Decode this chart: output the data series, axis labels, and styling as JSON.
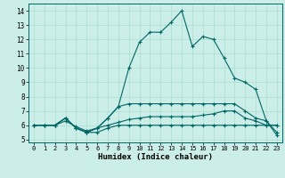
{
  "xlabel": "Humidex (Indice chaleur)",
  "xlim": [
    -0.5,
    23.5
  ],
  "ylim": [
    4.8,
    14.5
  ],
  "xticks": [
    0,
    1,
    2,
    3,
    4,
    5,
    6,
    7,
    8,
    9,
    10,
    11,
    12,
    13,
    14,
    15,
    16,
    17,
    18,
    19,
    20,
    21,
    22,
    23
  ],
  "yticks": [
    5,
    6,
    7,
    8,
    9,
    10,
    11,
    12,
    13,
    14
  ],
  "bg_color": "#cceee8",
  "line_color": "#006666",
  "grid_color": "#aaddcc",
  "curves": [
    [
      6.0,
      6.0,
      6.0,
      6.5,
      5.8,
      5.5,
      5.5,
      5.8,
      6.0,
      6.0,
      6.0,
      6.0,
      6.0,
      6.0,
      6.0,
      6.0,
      6.0,
      6.0,
      6.0,
      6.0,
      6.0,
      6.0,
      6.0,
      6.0
    ],
    [
      6.0,
      6.0,
      6.0,
      6.3,
      5.9,
      5.6,
      5.8,
      6.0,
      6.2,
      6.4,
      6.5,
      6.6,
      6.6,
      6.6,
      6.6,
      6.6,
      6.7,
      6.8,
      7.0,
      7.0,
      6.5,
      6.3,
      6.0,
      6.0
    ],
    [
      6.0,
      6.0,
      6.0,
      6.5,
      5.8,
      5.5,
      5.8,
      6.5,
      7.3,
      7.5,
      7.5,
      7.5,
      7.5,
      7.5,
      7.5,
      7.5,
      7.5,
      7.5,
      7.5,
      7.5,
      7.0,
      6.5,
      6.3,
      5.5
    ],
    [
      6.0,
      6.0,
      6.0,
      6.5,
      5.8,
      5.5,
      5.8,
      6.5,
      7.3,
      10.0,
      11.8,
      12.5,
      12.5,
      13.2,
      14.0,
      11.5,
      12.2,
      12.0,
      10.7,
      9.3,
      9.0,
      8.5,
      6.3,
      5.3
    ]
  ]
}
